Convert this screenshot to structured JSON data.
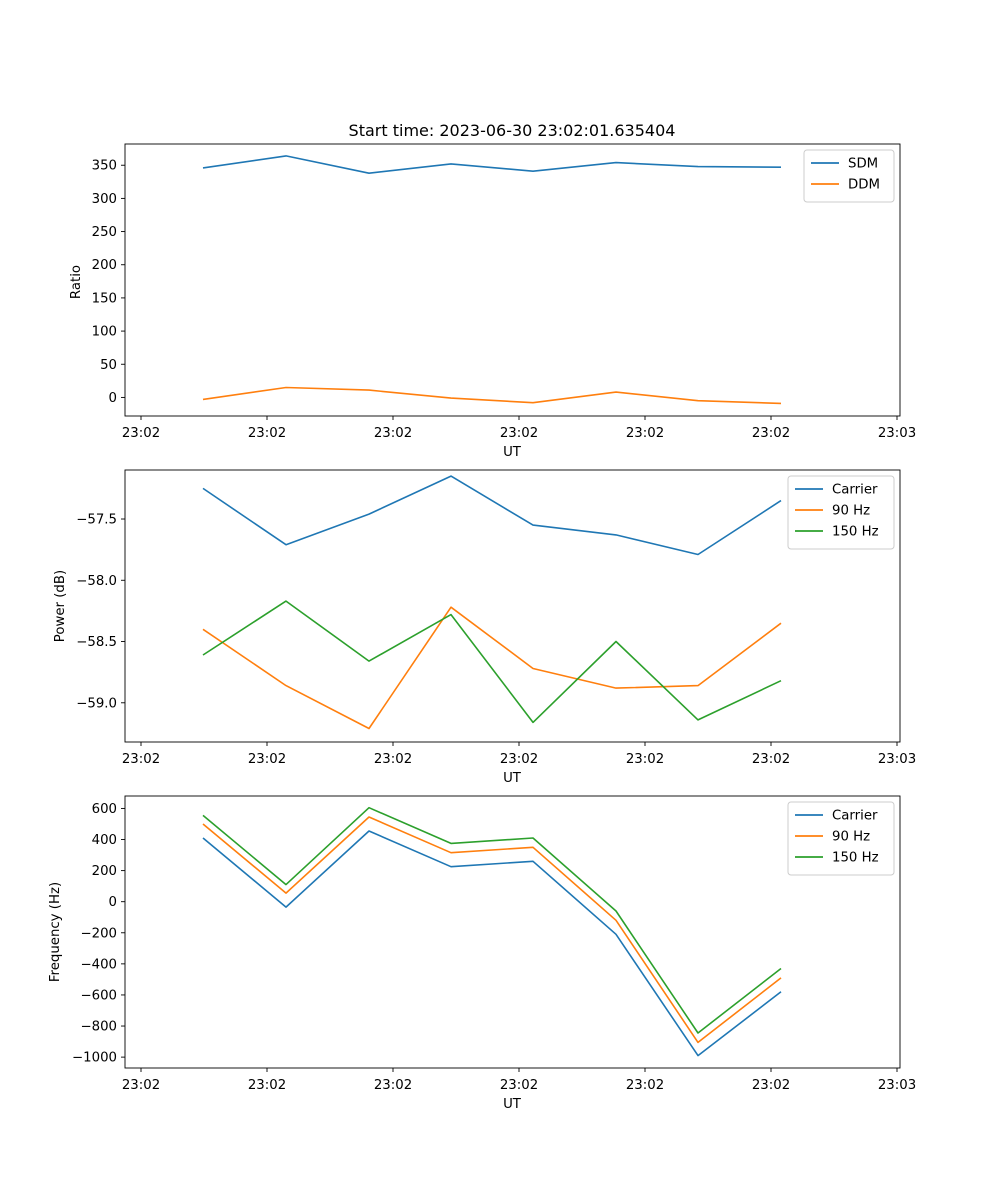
{
  "chart_data": [
    {
      "type": "line",
      "title": "Start time: 2023-06-30 23:02:01.635404",
      "xlabel": "UT",
      "ylabel": "Ratio",
      "x_tick_labels": [
        "23:02",
        "23:02",
        "23:02",
        "23:02",
        "23:02",
        "23:02",
        "23:03"
      ],
      "ylim": [
        -28,
        382
      ],
      "yticks": [
        0,
        50,
        100,
        150,
        200,
        250,
        300,
        350
      ],
      "legend_position": "top-right",
      "grid": false,
      "series": [
        {
          "name": "SDM",
          "color": "#1f77b4",
          "values": [
            346,
            364,
            338,
            352,
            341,
            354,
            348,
            347
          ]
        },
        {
          "name": "DDM",
          "color": "#ff7f0e",
          "values": [
            -3,
            15,
            11,
            -1,
            -8,
            8,
            -5,
            -9
          ]
        }
      ]
    },
    {
      "type": "line",
      "title": "",
      "xlabel": "UT",
      "ylabel": "Power (dB)",
      "x_tick_labels": [
        "23:02",
        "23:02",
        "23:02",
        "23:02",
        "23:02",
        "23:02",
        "23:03"
      ],
      "ylim": [
        -59.32,
        -57.1
      ],
      "yticks": [
        -59.0,
        -58.5,
        -58.0,
        -57.5
      ],
      "ytick_labels": [
        "−59.0",
        "−58.5",
        "−58.0",
        "−57.5"
      ],
      "legend_position": "top-right",
      "grid": false,
      "series": [
        {
          "name": "Carrier",
          "color": "#1f77b4",
          "values": [
            -57.25,
            -57.71,
            -57.46,
            -57.15,
            -57.55,
            -57.63,
            -57.79,
            -57.35
          ]
        },
        {
          "name": "90 Hz",
          "color": "#ff7f0e",
          "values": [
            -58.4,
            -58.86,
            -59.21,
            -58.22,
            -58.72,
            -58.88,
            -58.86,
            -58.35
          ]
        },
        {
          "name": "150 Hz",
          "color": "#2ca02c",
          "values": [
            -58.61,
            -58.17,
            -58.66,
            -58.28,
            -59.16,
            -58.5,
            -59.14,
            -58.82
          ]
        }
      ]
    },
    {
      "type": "line",
      "title": "",
      "xlabel": "UT",
      "ylabel": "Frequency (Hz)",
      "x_tick_labels": [
        "23:02",
        "23:02",
        "23:02",
        "23:02",
        "23:02",
        "23:02",
        "23:03"
      ],
      "ylim": [
        -1070,
        680
      ],
      "yticks": [
        -1000,
        -800,
        -600,
        -400,
        -200,
        0,
        200,
        400,
        600
      ],
      "ytick_labels": [
        "−1000",
        "−800",
        "−600",
        "−400",
        "−200",
        "0",
        "200",
        "400",
        "600"
      ],
      "legend_position": "top-right",
      "grid": false,
      "series": [
        {
          "name": "Carrier",
          "color": "#1f77b4",
          "values": [
            410,
            -35,
            455,
            225,
            260,
            -210,
            -990,
            -580
          ]
        },
        {
          "name": "90 Hz",
          "color": "#ff7f0e",
          "values": [
            500,
            55,
            545,
            315,
            350,
            -120,
            -905,
            -490
          ]
        },
        {
          "name": "150 Hz",
          "color": "#2ca02c",
          "values": [
            555,
            110,
            605,
            375,
            410,
            -60,
            -845,
            -430
          ]
        }
      ]
    }
  ]
}
